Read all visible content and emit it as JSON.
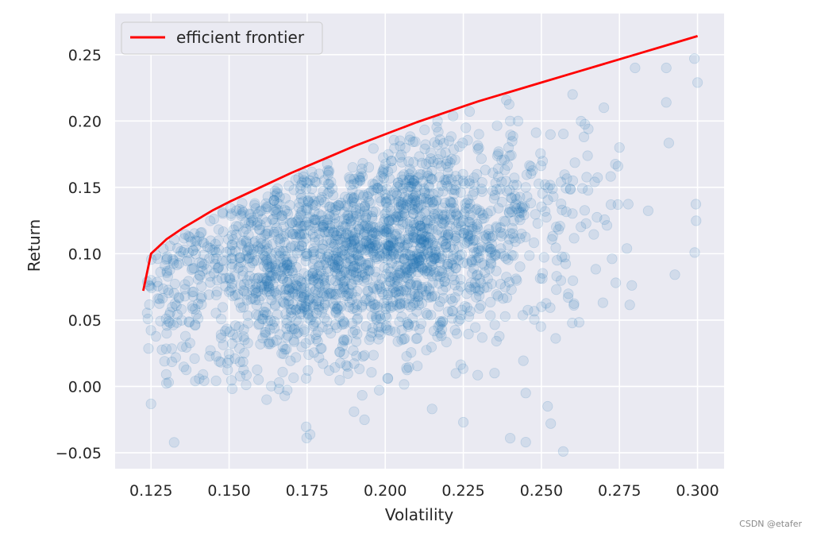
{
  "chart_data": {
    "type": "scatter",
    "xlabel": "Volatility",
    "ylabel": "Return",
    "xlim": [
      0.1135,
      0.3085
    ],
    "ylim": [
      -0.062,
      0.281
    ],
    "xticks": [
      0.125,
      0.15,
      0.175,
      0.2,
      0.225,
      0.25,
      0.275,
      0.3
    ],
    "xtick_labels": [
      "0.125",
      "0.150",
      "0.175",
      "0.200",
      "0.225",
      "0.250",
      "0.275",
      "0.300"
    ],
    "yticks": [
      -0.05,
      0.0,
      0.05,
      0.1,
      0.15,
      0.2,
      0.25
    ],
    "ytick_labels": [
      "−0.05",
      "0.00",
      "0.05",
      "0.10",
      "0.15",
      "0.20",
      "0.25"
    ],
    "grid": true,
    "legend_position": "upper-left",
    "background_color": "#eaeaf2",
    "series": [
      {
        "name": "efficient frontier",
        "kind": "line",
        "color": "#ff0000",
        "x": [
          0.1225,
          0.125,
          0.13,
          0.135,
          0.14,
          0.145,
          0.15,
          0.16,
          0.17,
          0.18,
          0.19,
          0.2,
          0.21,
          0.22,
          0.23,
          0.24,
          0.25,
          0.26,
          0.27,
          0.28,
          0.29,
          0.3
        ],
        "y": [
          0.072,
          0.1,
          0.111,
          0.119,
          0.126,
          0.133,
          0.139,
          0.15,
          0.161,
          0.171,
          0.181,
          0.19,
          0.199,
          0.207,
          0.215,
          0.222,
          0.229,
          0.236,
          0.243,
          0.25,
          0.257,
          0.264
        ]
      },
      {
        "name": "",
        "kind": "scatter",
        "color": "#1f77b4",
        "alpha": 0.12,
        "n_points": 10000,
        "x_range": [
          0.1225,
          0.3
        ],
        "y_range": [
          -0.05,
          0.25
        ],
        "sample_points": [
          [
            0.175,
            0.1
          ],
          [
            0.18,
            0.12
          ],
          [
            0.19,
            0.11
          ],
          [
            0.165,
            0.07
          ],
          [
            0.2,
            0.13
          ],
          [
            0.21,
            0.15
          ],
          [
            0.22,
            0.17
          ],
          [
            0.23,
            0.19
          ],
          [
            0.24,
            0.2
          ],
          [
            0.26,
            0.22
          ],
          [
            0.28,
            0.24
          ],
          [
            0.29,
            0.24
          ],
          [
            0.299,
            0.247
          ],
          [
            0.3,
            0.229
          ],
          [
            0.29,
            0.214
          ],
          [
            0.25,
            0.06
          ],
          [
            0.245,
            -0.005
          ],
          [
            0.252,
            -0.015
          ],
          [
            0.24,
            -0.039
          ],
          [
            0.245,
            -0.042
          ],
          [
            0.257,
            -0.049
          ],
          [
            0.253,
            -0.028
          ],
          [
            0.225,
            -0.027
          ],
          [
            0.215,
            -0.017
          ],
          [
            0.19,
            -0.019
          ],
          [
            0.166,
            -0.002
          ],
          [
            0.13,
            0.04
          ],
          [
            0.125,
            0.08
          ],
          [
            0.135,
            0.03
          ],
          [
            0.15,
            0.02
          ],
          [
            0.255,
            0.095
          ],
          [
            0.245,
            0.15
          ],
          [
            0.27,
            0.21
          ],
          [
            0.275,
            0.18
          ],
          [
            0.235,
            0.01
          ]
        ]
      }
    ]
  },
  "watermark": "CSDN @etafer"
}
